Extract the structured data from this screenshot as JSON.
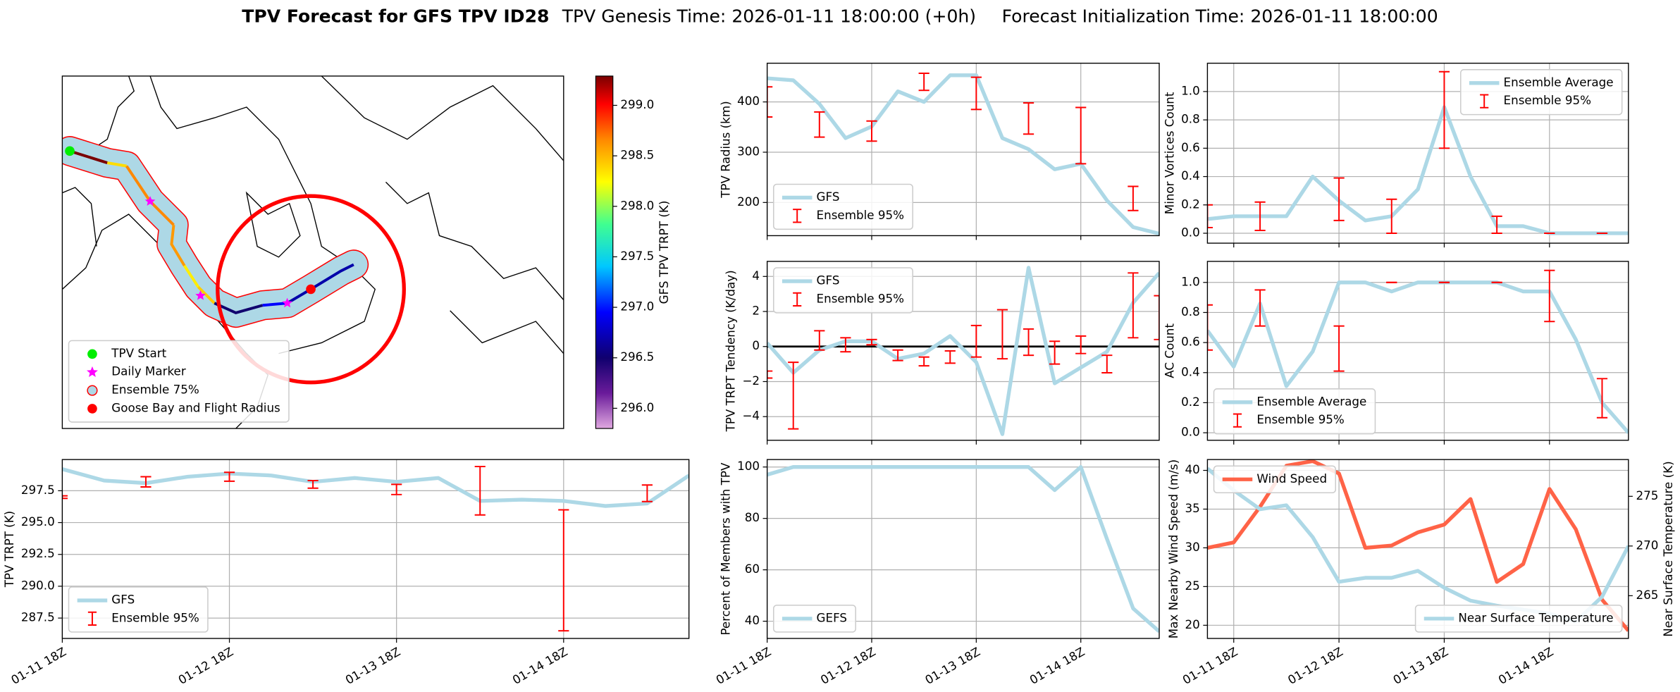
{
  "title": "TPV Forecast for GFS TPV ID28",
  "subtitle_left": "TPV Genesis Time: 2026-01-11 18:00:00 (+0h)",
  "subtitle_right": "Forecast Initialization Time: 2026-01-11 18:00:00",
  "chart_data": [
    {
      "type": "map",
      "legend": "lower left",
      "markers": [
        {
          "name": "TPV Start",
          "color": "#00ee00",
          "marker": "circle"
        },
        {
          "name": "Daily Marker",
          "color": "#ff00ff",
          "marker": "star"
        },
        {
          "name": "Ensemble 75%",
          "color": "#add8e6",
          "edgecolor": "red",
          "marker": "circle"
        },
        {
          "name": "Goose Bay and Flight Radius",
          "color": "red",
          "marker": "circle"
        }
      ],
      "colorbar_label": "GFS TPV TRPT (K)",
      "clim": [
        295.8,
        299.29
      ],
      "cticks": [
        {
          "value": 296,
          "label": "296.0"
        },
        296.5,
        {
          "value": 297,
          "label": "297.0"
        },
        297.5,
        {
          "value": 298,
          "label": "298.0"
        },
        298.5,
        {
          "value": 299,
          "label": "299.0"
        }
      ]
    },
    {
      "type": "line",
      "ylabel": "TPV Radius (km)",
      "ylim": [
        134,
        477
      ],
      "yticks": [
        200,
        300,
        400
      ],
      "grid": true,
      "legend": "lower left",
      "series": [
        {
          "name": "GFS",
          "color": "#add8e6",
          "style": "line",
          "values": [
            447,
            443,
            396,
            328,
            351,
            421,
            400,
            453,
            453,
            328,
            306,
            266,
            277,
            204,
            151,
            138
          ]
        },
        {
          "name": "Ensemble 95%",
          "color": "red",
          "style": "errorbar",
          "values": [
            400,
            null,
            355,
            null,
            342,
            null,
            440,
            null,
            417,
            null,
            367,
            null,
            333,
            null,
            208,
            null
          ],
          "errors": [
            30,
            null,
            25,
            null,
            20,
            null,
            17,
            null,
            32,
            null,
            31,
            null,
            56,
            null,
            24,
            null
          ]
        }
      ]
    },
    {
      "type": "line",
      "ylabel": "TPV TRPT Tendency (K/day)",
      "ylim": [
        -5.35,
        4.86
      ],
      "yticks": [
        {
          "value": -4,
          "label": "−4"
        },
        {
          "value": -2,
          "label": "−2"
        },
        0,
        2,
        4
      ],
      "grid": true,
      "legend": "upper left",
      "hline": 0,
      "series": [
        {
          "name": "GFS",
          "color": "#add8e6",
          "style": "line",
          "values": [
            0.2,
            -1.5,
            -0.2,
            0.3,
            0.3,
            -0.7,
            -0.4,
            0.6,
            -0.9,
            -5.0,
            4.5,
            -2.1,
            -1.2,
            -0.3,
            2.5,
            4.2
          ]
        },
        {
          "name": "Ensemble 95%",
          "color": "red",
          "style": "errorbar",
          "values": [
            -1.6,
            -2.8,
            0.35,
            0.1,
            0.25,
            -0.5,
            -0.85,
            -0.6,
            0.3,
            0.7,
            0.25,
            -0.35,
            0.1,
            -1.0,
            2.35,
            1.65
          ],
          "errors": [
            0.2,
            1.9,
            0.55,
            0.4,
            0.15,
            0.3,
            0.25,
            0.35,
            0.9,
            1.4,
            0.75,
            0.65,
            0.5,
            0.5,
            1.85,
            1.25
          ]
        }
      ]
    },
    {
      "type": "line",
      "ylabel": "Percent of Members with TPV",
      "ylim": [
        33.3,
        102.9
      ],
      "yticks": [
        40,
        60,
        80,
        100
      ],
      "grid": true,
      "legend": "lower left",
      "categories": [
        "01-11 18Z",
        null,
        null,
        null,
        "01-12 18Z",
        null,
        null,
        null,
        "01-13 18Z",
        null,
        null,
        null,
        "01-14 18Z",
        null,
        null,
        null
      ],
      "series": [
        {
          "name": "GEFS",
          "color": "#add8e6",
          "style": "line",
          "values": [
            97,
            100,
            100,
            100,
            100,
            100,
            100,
            100,
            100,
            100,
            100,
            91,
            100,
            72,
            45,
            36
          ]
        }
      ]
    },
    {
      "type": "line",
      "ylabel": "Minor Vortices Count",
      "ylim": [
        -0.07,
        1.2
      ],
      "yticks": [
        {
          "value": 0,
          "label": "0.0"
        },
        0.2,
        0.4,
        0.6,
        0.8,
        {
          "value": 1,
          "label": "1.0"
        }
      ],
      "grid": true,
      "legend": "upper right",
      "series": [
        {
          "name": "Ensemble Average",
          "color": "#add8e6",
          "style": "line",
          "values": [
            0.1,
            0.12,
            0.12,
            0.12,
            0.4,
            0.23,
            0.09,
            0.12,
            0.31,
            0.89,
            0.4,
            0.05,
            0.05,
            0,
            0,
            0,
            0
          ]
        },
        {
          "name": "Ensemble 95%",
          "color": "red",
          "style": "errorbar",
          "values": [
            0.12,
            null,
            0.12,
            null,
            null,
            0.24,
            null,
            0.12,
            null,
            0.87,
            null,
            0.06,
            null,
            0,
            null,
            0,
            null
          ],
          "errors": [
            0.08,
            null,
            0.1,
            null,
            null,
            0.15,
            null,
            0.12,
            null,
            0.27,
            null,
            0.06,
            null,
            0,
            null,
            0,
            null
          ]
        }
      ]
    },
    {
      "type": "line",
      "ylabel": "AC Count",
      "ylim": [
        -0.05,
        1.14
      ],
      "yticks": [
        {
          "value": 0,
          "label": "0.0"
        },
        0.2,
        0.4,
        0.6,
        0.8,
        {
          "value": 1,
          "label": "1.0"
        }
      ],
      "grid": true,
      "legend": "lower left",
      "series": [
        {
          "name": "Ensemble Average",
          "color": "#add8e6",
          "style": "line",
          "values": [
            0.68,
            0.44,
            0.86,
            0.31,
            0.54,
            1.0,
            1.0,
            0.94,
            1.0,
            1.0,
            1.0,
            1.0,
            0.94,
            0.94,
            0.62,
            0.2,
            0
          ]
        },
        {
          "name": "Ensemble 95%",
          "color": "red",
          "style": "errorbar",
          "values": [
            0.7,
            null,
            0.83,
            null,
            null,
            0.56,
            null,
            1.0,
            null,
            1.0,
            null,
            1.0,
            null,
            0.91,
            null,
            0.23,
            null
          ],
          "errors": [
            0.15,
            null,
            0.12,
            null,
            null,
            0.15,
            null,
            0,
            null,
            0,
            null,
            0,
            null,
            0.17,
            null,
            0.13,
            null
          ]
        }
      ]
    },
    {
      "type": "line",
      "ylabel": "Max Nearby Wind Speed (m/s)",
      "y_color": "#ff6347",
      "ylim": [
        18.3,
        41.4
      ],
      "yticks": [
        20,
        25,
        30,
        35,
        40
      ],
      "y2label": "Near Surface Temperature (K)",
      "y2_color": "#4169e1",
      "y2lim": [
        260.7,
        278.7
      ],
      "y2ticks": [
        265,
        270,
        275
      ],
      "grid": true,
      "legend": "upper left",
      "y2_legend": "lower right",
      "categories": [
        null,
        "01-11 18Z",
        null,
        null,
        null,
        "01-12 18Z",
        null,
        null,
        null,
        "01-13 18Z",
        null,
        null,
        null,
        "01-14 18Z",
        null,
        null,
        null
      ],
      "series": [
        {
          "name": "Wind Speed",
          "color": "#ff6347",
          "style": "line",
          "values": [
            30,
            30.7,
            35.3,
            40.6,
            41.2,
            39.6,
            30,
            30.3,
            32,
            33,
            36.3,
            25.6,
            27.9,
            37.6,
            32.4,
            23.3,
            19.3
          ]
        },
        {
          "name": "Near Surface Temperature",
          "color": "#add8e6",
          "style": "line",
          "axis": "y2",
          "values": [
            277.8,
            275.6,
            273.7,
            274.1,
            270.9,
            266.4,
            266.8,
            266.8,
            267.5,
            265.8,
            264.5,
            264.0,
            263.6,
            263.2,
            262.4,
            264.9,
            270
          ]
        }
      ]
    },
    {
      "type": "line",
      "ylabel": "TPV TRPT (K)",
      "ylim": [
        285.9,
        299.95
      ],
      "yticks": [
        {
          "value": 287.5,
          "label": "287.5"
        },
        {
          "value": 290,
          "label": "290.0"
        },
        292.5,
        {
          "value": 295,
          "label": "295.0"
        },
        297.5
      ],
      "grid": true,
      "legend": "lower left",
      "categories": [
        "01-11 18Z",
        null,
        null,
        null,
        "01-12 18Z",
        null,
        null,
        null,
        "01-13 18Z",
        null,
        null,
        null,
        "01-14 18Z",
        null,
        null,
        null
      ],
      "series": [
        {
          "name": "GFS",
          "color": "#add8e6",
          "style": "line",
          "values": [
            299.2,
            298.3,
            298.1,
            298.6,
            298.85,
            298.7,
            298.2,
            298.5,
            298.2,
            298.5,
            296.7,
            296.8,
            296.7,
            296.3,
            296.5,
            298.7
          ]
        },
        {
          "name": "Ensemble 95%",
          "color": "red",
          "style": "errorbar",
          "values": [
            297.0,
            null,
            298.2,
            null,
            298.6,
            null,
            298.0,
            null,
            297.6,
            null,
            297.5,
            null,
            291.25,
            null,
            297.3,
            null
          ],
          "errors": [
            0.1,
            null,
            0.4,
            null,
            0.35,
            null,
            0.3,
            null,
            0.4,
            null,
            1.9,
            null,
            4.75,
            null,
            0.65,
            null
          ]
        }
      ]
    }
  ]
}
